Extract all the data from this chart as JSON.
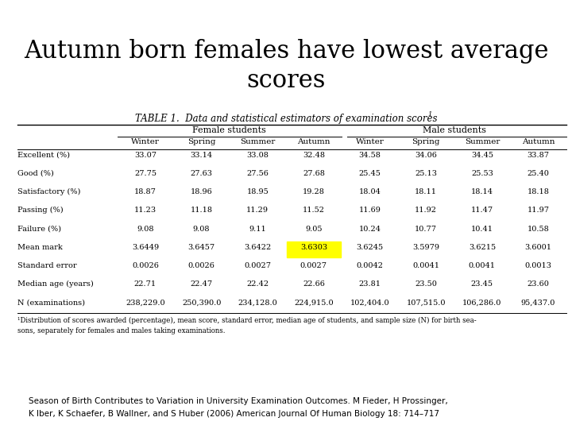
{
  "title_line1": "Autumn born females have lowest average",
  "title_line2": "scores",
  "table_title": "TABLE 1.  Data and statistical estimators of examination scores",
  "table_title_superscript": "1",
  "col_groups": [
    "Female students",
    "Male students"
  ],
  "seasons": [
    "Winter",
    "Spring",
    "Summer",
    "Autumn",
    "Winter",
    "Spring",
    "Summer",
    "Autumn"
  ],
  "row_labels": [
    "Excellent (%)",
    "Good (%)",
    "Satisfactory (%)",
    "Passing (%)",
    "Failure (%)",
    "Mean mark",
    "Standard error",
    "Median age (years)",
    "N (examinations)"
  ],
  "data": [
    [
      "33.07",
      "33.14",
      "33.08",
      "32.48",
      "34.58",
      "34.06",
      "34.45",
      "33.87"
    ],
    [
      "27.75",
      "27.63",
      "27.56",
      "27.68",
      "25.45",
      "25.13",
      "25.53",
      "25.40"
    ],
    [
      "18.87",
      "18.96",
      "18.95",
      "19.28",
      "18.04",
      "18.11",
      "18.14",
      "18.18"
    ],
    [
      "11.23",
      "11.18",
      "11.29",
      "11.52",
      "11.69",
      "11.92",
      "11.47",
      "11.97"
    ],
    [
      "9.08",
      "9.08",
      "9.11",
      "9.05",
      "10.24",
      "10.77",
      "10.41",
      "10.58"
    ],
    [
      "3.6449",
      "3.6457",
      "3.6422",
      "3.6303",
      "3.6245",
      "3.5979",
      "3.6215",
      "3.6001"
    ],
    [
      "0.0026",
      "0.0026",
      "0.0027",
      "0.0027",
      "0.0042",
      "0.0041",
      "0.0041",
      "0.0013"
    ],
    [
      "22.71",
      "22.47",
      "22.42",
      "22.66",
      "23.81",
      "23.50",
      "23.45",
      "23.60"
    ],
    [
      "238,229.0",
      "250,390.0",
      "234,128.0",
      "224,915.0",
      "102,404.0",
      "107,515.0",
      "106,286.0",
      "95,437.0"
    ]
  ],
  "highlighted_cell": [
    5,
    3
  ],
  "highlight_color": "#FFFF00",
  "footnote1": "¹Distribution of scores awarded (percentage), mean score, standard error, median age of students, and sample size (N) for birth sea-",
  "footnote2": "sons, separately for females and males taking examinations.",
  "citation": "Season of Birth Contributes to Variation in University Examination Outcomes. M Fieder, H Prossinger,",
  "citation2": "K Iber, K Schaefer, B Wallner, and S Huber (2006) American Journal Of Human Biology 18: 714–717",
  "background_color": "#ffffff",
  "title_fontsize": 22,
  "table_title_fontsize": 8.5
}
